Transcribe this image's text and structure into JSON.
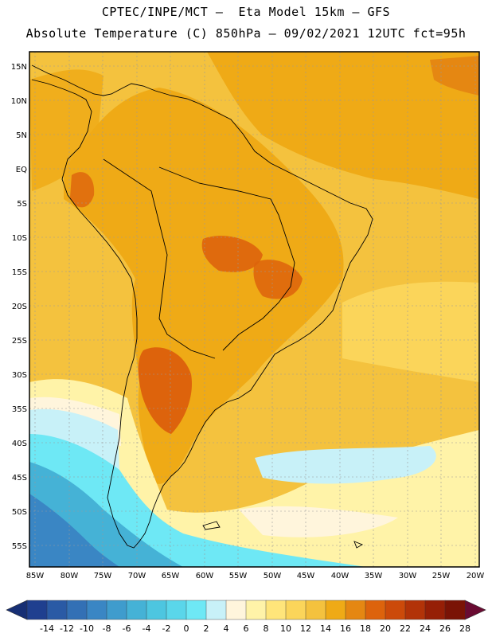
{
  "header": {
    "line1": "CPTEC/INPE/MCT –  Eta Model 15km – GFS",
    "line2": "Absolute Temperature (C) 850hPa – 09/02/2021 12UTC fct=95h"
  },
  "map": {
    "lat_labels": [
      "15N",
      "10N",
      "5N",
      "EQ",
      "5S",
      "10S",
      "15S",
      "20S",
      "25S",
      "30S",
      "35S",
      "40S",
      "45S",
      "50S",
      "55S"
    ],
    "lon_labels": [
      "85W",
      "80W",
      "75W",
      "70W",
      "65W",
      "60W",
      "55W",
      "50W",
      "45W",
      "40W",
      "35W",
      "30W",
      "25W",
      "20W"
    ]
  },
  "colorbar": {
    "values": [
      "-14",
      "-12",
      "-10",
      "-8",
      "-6",
      "-4",
      "-2",
      "0",
      "2",
      "4",
      "6",
      "8",
      "10",
      "12",
      "14",
      "16",
      "18",
      "20",
      "22",
      "24",
      "26",
      "28"
    ],
    "colors": [
      "#1f3f8f",
      "#2a5aa5",
      "#3370b5",
      "#3a86c4",
      "#3f9ccd",
      "#45b2d6",
      "#4dc6e0",
      "#5ad6ea",
      "#6ee8f5",
      "#c8f1f8",
      "#fff5dc",
      "#fff3a8",
      "#ffe57a",
      "#fbd55a",
      "#f4c23e",
      "#efaa16",
      "#e58712",
      "#dd630c",
      "#cc4a0a",
      "#b23308",
      "#961f06",
      "#7a1305"
    ],
    "low_color": "#172f74",
    "high_color": "#6a0b32"
  }
}
